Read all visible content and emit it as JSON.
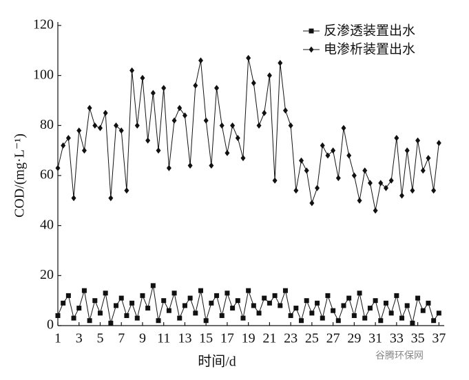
{
  "chart_data": {
    "type": "line",
    "ylabel": "COD/(mg·L⁻¹)",
    "xlabel": "时间/d",
    "watermark": "谷腾环保网",
    "x": [
      1,
      1.5,
      2,
      2.5,
      3,
      3.5,
      4,
      4.5,
      5,
      5.5,
      6,
      6.5,
      7,
      7.5,
      8,
      8.5,
      9,
      9.5,
      10,
      10.5,
      11,
      11.5,
      12,
      12.5,
      13,
      13.5,
      14,
      14.5,
      15,
      15.5,
      16,
      16.5,
      17,
      17.5,
      18,
      18.5,
      19,
      19.5,
      20,
      20.5,
      21,
      21.5,
      22,
      22.5,
      23,
      23.5,
      24,
      24.5,
      25,
      25.5,
      26,
      26.5,
      27,
      27.5,
      28,
      28.5,
      29,
      29.5,
      30,
      30.5,
      31,
      31.5,
      32,
      32.5,
      33,
      33.5,
      34,
      34.5,
      35,
      35.5,
      36,
      36.5,
      37
    ],
    "series": [
      {
        "name": "反渗透装置出水",
        "marker": "square",
        "color": "#111111",
        "values": [
          4,
          9,
          12,
          3,
          7,
          14,
          2,
          10,
          5,
          13,
          1,
          8,
          11,
          4,
          9,
          3,
          12,
          7,
          16,
          2,
          10,
          6,
          13,
          3,
          8,
          11,
          5,
          14,
          2,
          9,
          12,
          4,
          13,
          7,
          10,
          3,
          14,
          8,
          5,
          11,
          9,
          12,
          8,
          14,
          4,
          7,
          2,
          10,
          5,
          9,
          3,
          12,
          6,
          2,
          8,
          11,
          4,
          13,
          3,
          7,
          10,
          2,
          9,
          5,
          12,
          3,
          8,
          1,
          11,
          6,
          9,
          2,
          5
        ]
      },
      {
        "name": "电渗析装置出水",
        "marker": "diamond",
        "color": "#111111",
        "values": [
          63,
          72,
          75,
          51,
          78,
          70,
          87,
          80,
          79,
          85,
          51,
          80,
          78,
          54,
          102,
          80,
          99,
          74,
          93,
          70,
          95,
          63,
          82,
          87,
          84,
          64,
          96,
          106,
          82,
          64,
          95,
          80,
          69,
          80,
          75,
          67,
          107,
          97,
          80,
          85,
          100,
          58,
          105,
          86,
          80,
          54,
          66,
          62,
          49,
          55,
          72,
          68,
          70,
          59,
          79,
          68,
          60,
          50,
          62,
          57,
          46,
          57,
          55,
          58,
          75,
          52,
          70,
          54,
          74,
          62,
          67,
          54,
          73
        ]
      }
    ],
    "xlim": [
      1,
      37.5
    ],
    "xticks": [
      1,
      3,
      5,
      7,
      9,
      11,
      13,
      15,
      17,
      19,
      21,
      23,
      25,
      27,
      29,
      31,
      33,
      35,
      37
    ],
    "ylim": [
      0,
      120
    ],
    "yticks": [
      0,
      20,
      40,
      60,
      80,
      100,
      120
    ],
    "legend": "top-right"
  }
}
